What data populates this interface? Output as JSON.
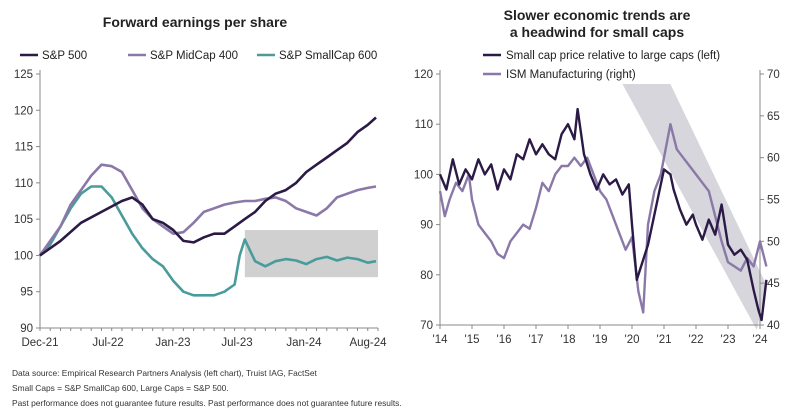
{
  "chart_data": [
    {
      "type": "line",
      "title": "Forward earnings per share",
      "x_start": "Dec-21",
      "x_end": "Aug-24",
      "x_tick_labels": [
        "Dec-21",
        "Jul-22",
        "Jan-23",
        "Jul-23",
        "Jan-24",
        "Aug-24"
      ],
      "y_ticks": [
        90,
        95,
        100,
        105,
        110,
        115,
        120,
        125
      ],
      "ylim": [
        90,
        125
      ],
      "highlight_box": {
        "x_from": "Aug-23",
        "x_to": "Aug-24",
        "y_from": 97,
        "y_to": 103.5
      },
      "series": [
        {
          "name": "S&P 500",
          "color": "#2b1a45",
          "points": [
            [
              0,
              100
            ],
            [
              2,
              102
            ],
            [
              4,
              104.5
            ],
            [
              6,
              106
            ],
            [
              8,
              107.5
            ],
            [
              9,
              108
            ],
            [
              10,
              107
            ],
            [
              11,
              105
            ],
            [
              12,
              104.5
            ],
            [
              13,
              103.5
            ],
            [
              14,
              102
            ],
            [
              15,
              101.8
            ],
            [
              16,
              102.5
            ],
            [
              17,
              103
            ],
            [
              18,
              103
            ],
            [
              19,
              104
            ],
            [
              20,
              105
            ],
            [
              21,
              106
            ],
            [
              22,
              107.5
            ],
            [
              23,
              108.5
            ],
            [
              24,
              109
            ],
            [
              25,
              110
            ],
            [
              26,
              111.5
            ],
            [
              27,
              112.5
            ],
            [
              28,
              113.5
            ],
            [
              29,
              114.5
            ],
            [
              30,
              115.5
            ],
            [
              31,
              117
            ],
            [
              32,
              118
            ],
            [
              32.8,
              119
            ]
          ]
        },
        {
          "name": "S&P MidCap 400",
          "color": "#8a78a8",
          "points": [
            [
              0,
              100
            ],
            [
              1,
              102
            ],
            [
              2,
              104
            ],
            [
              3,
              107
            ],
            [
              4,
              109
            ],
            [
              5,
              111
            ],
            [
              6,
              112.5
            ],
            [
              7,
              112.3
            ],
            [
              8,
              111.5
            ],
            [
              9,
              109
            ],
            [
              10,
              106.5
            ],
            [
              11,
              105
            ],
            [
              12,
              104
            ],
            [
              13,
              103
            ],
            [
              14,
              103.2
            ],
            [
              15,
              104.5
            ],
            [
              16,
              106
            ],
            [
              17,
              106.5
            ],
            [
              18,
              107
            ],
            [
              19,
              107.3
            ],
            [
              20,
              107.5
            ],
            [
              21,
              107.5
            ],
            [
              22,
              107.8
            ],
            [
              23,
              108
            ],
            [
              24,
              107.5
            ],
            [
              25,
              106.5
            ],
            [
              26,
              106
            ],
            [
              27,
              105.5
            ],
            [
              28,
              106.5
            ],
            [
              29,
              108
            ],
            [
              30,
              108.5
            ],
            [
              31,
              109
            ],
            [
              32,
              109.3
            ],
            [
              32.8,
              109.5
            ]
          ]
        },
        {
          "name": "S&P SmallCap 600",
          "color": "#4a9b9b",
          "points": [
            [
              0,
              100
            ],
            [
              1,
              101.5
            ],
            [
              2,
              104
            ],
            [
              3,
              106.5
            ],
            [
              4,
              108.5
            ],
            [
              5,
              109.5
            ],
            [
              6,
              109.5
            ],
            [
              7,
              108
            ],
            [
              8,
              105.5
            ],
            [
              9,
              103
            ],
            [
              10,
              101
            ],
            [
              11,
              99.5
            ],
            [
              12,
              98.5
            ],
            [
              13,
              96.5
            ],
            [
              14,
              95
            ],
            [
              15,
              94.5
            ],
            [
              16,
              94.5
            ],
            [
              17,
              94.5
            ],
            [
              18,
              95
            ],
            [
              19,
              96
            ],
            [
              19.5,
              100
            ],
            [
              20,
              102.2
            ],
            [
              21,
              99.2
            ],
            [
              22,
              98.5
            ],
            [
              23,
              99.2
            ],
            [
              24,
              99.5
            ],
            [
              25,
              99.3
            ],
            [
              26,
              98.8
            ],
            [
              27,
              99.5
            ],
            [
              28,
              99.8
            ],
            [
              29,
              99.3
            ],
            [
              30,
              99.7
            ],
            [
              31,
              99.5
            ],
            [
              32,
              99
            ],
            [
              32.8,
              99.2
            ]
          ]
        }
      ]
    },
    {
      "type": "line",
      "title_lines": [
        "Slower economic trends are",
        "a headwind for small caps"
      ],
      "x_tick_labels": [
        "'14",
        "'15",
        "'16",
        "'17",
        "'18",
        "'19",
        "'20",
        "'21",
        "'22",
        "'23",
        "'24"
      ],
      "y_left_ticks": [
        70,
        80,
        90,
        100,
        110,
        120
      ],
      "y_right_ticks": [
        40,
        45,
        50,
        55,
        60,
        65,
        70
      ],
      "ylim_left": [
        70,
        120
      ],
      "ylim_right": [
        40,
        70
      ],
      "trend_band": "shaded downward channel from late 2019 to 2024",
      "series": [
        {
          "name": "Small cap price relative to large caps (left)",
          "axis": "left",
          "color": "#2b1a45",
          "points": [
            [
              2014.0,
              100
            ],
            [
              2014.2,
              97
            ],
            [
              2014.4,
              103
            ],
            [
              2014.6,
              98
            ],
            [
              2014.8,
              101
            ],
            [
              2015.0,
              99
            ],
            [
              2015.2,
              103
            ],
            [
              2015.4,
              100
            ],
            [
              2015.6,
              102
            ],
            [
              2015.8,
              97
            ],
            [
              2016.0,
              101
            ],
            [
              2016.2,
              99
            ],
            [
              2016.4,
              104
            ],
            [
              2016.6,
              103
            ],
            [
              2016.8,
              107
            ],
            [
              2017.0,
              104
            ],
            [
              2017.2,
              106
            ],
            [
              2017.4,
              104
            ],
            [
              2017.6,
              103
            ],
            [
              2017.8,
              108
            ],
            [
              2018.0,
              110
            ],
            [
              2018.2,
              107
            ],
            [
              2018.3,
              113
            ],
            [
              2018.5,
              104
            ],
            [
              2018.7,
              100
            ],
            [
              2018.9,
              97
            ],
            [
              2019.1,
              100
            ],
            [
              2019.3,
              98
            ],
            [
              2019.5,
              99
            ],
            [
              2019.7,
              96
            ],
            [
              2019.9,
              98
            ],
            [
              2020.0,
              90
            ],
            [
              2020.15,
              79
            ],
            [
              2020.3,
              82
            ],
            [
              2020.5,
              86
            ],
            [
              2020.7,
              92
            ],
            [
              2020.9,
              98
            ],
            [
              2021.0,
              101
            ],
            [
              2021.2,
              100
            ],
            [
              2021.3,
              97
            ],
            [
              2021.5,
              93
            ],
            [
              2021.7,
              90
            ],
            [
              2021.9,
              92
            ],
            [
              2022.0,
              90
            ],
            [
              2022.2,
              87
            ],
            [
              2022.4,
              91
            ],
            [
              2022.6,
              88
            ],
            [
              2022.8,
              94
            ],
            [
              2023.0,
              86
            ],
            [
              2023.2,
              84
            ],
            [
              2023.4,
              85
            ],
            [
              2023.6,
              83
            ],
            [
              2023.8,
              77
            ],
            [
              2023.95,
              73
            ],
            [
              2024.05,
              71
            ],
            [
              2024.2,
              79
            ]
          ]
        },
        {
          "name": "ISM Manufacturing (right)",
          "axis": "right",
          "color": "#8a78a8",
          "points": [
            [
              2014.0,
              56
            ],
            [
              2014.15,
              53
            ],
            [
              2014.3,
              55
            ],
            [
              2014.5,
              57
            ],
            [
              2014.7,
              56
            ],
            [
              2014.9,
              58
            ],
            [
              2015.0,
              55
            ],
            [
              2015.2,
              52
            ],
            [
              2015.4,
              51
            ],
            [
              2015.6,
              50
            ],
            [
              2015.8,
              48.5
            ],
            [
              2016.0,
              48
            ],
            [
              2016.2,
              50
            ],
            [
              2016.4,
              51
            ],
            [
              2016.6,
              52
            ],
            [
              2016.8,
              51.5
            ],
            [
              2017.0,
              54
            ],
            [
              2017.2,
              57
            ],
            [
              2017.4,
              56
            ],
            [
              2017.6,
              58
            ],
            [
              2017.8,
              59
            ],
            [
              2018.0,
              59
            ],
            [
              2018.2,
              60
            ],
            [
              2018.4,
              59
            ],
            [
              2018.6,
              60
            ],
            [
              2018.8,
              58
            ],
            [
              2019.0,
              56
            ],
            [
              2019.2,
              55
            ],
            [
              2019.4,
              53
            ],
            [
              2019.6,
              51
            ],
            [
              2019.8,
              49
            ],
            [
              2020.0,
              50.5
            ],
            [
              2020.2,
              44
            ],
            [
              2020.35,
              41.5
            ],
            [
              2020.5,
              52
            ],
            [
              2020.7,
              56
            ],
            [
              2020.9,
              58
            ],
            [
              2021.0,
              60
            ],
            [
              2021.2,
              64
            ],
            [
              2021.4,
              61
            ],
            [
              2021.6,
              60
            ],
            [
              2021.8,
              59
            ],
            [
              2022.0,
              58
            ],
            [
              2022.2,
              57
            ],
            [
              2022.4,
              56
            ],
            [
              2022.6,
              53
            ],
            [
              2022.8,
              50
            ],
            [
              2023.0,
              47.5
            ],
            [
              2023.2,
              47
            ],
            [
              2023.4,
              46.5
            ],
            [
              2023.6,
              48
            ],
            [
              2023.8,
              47
            ],
            [
              2024.0,
              50
            ],
            [
              2024.2,
              47
            ]
          ]
        }
      ]
    }
  ],
  "legends": {
    "left": [
      "S&P 500",
      "S&P MidCap 400",
      "S&P SmallCap 600"
    ],
    "right": [
      "Small cap price relative to large caps (left)",
      "ISM Manufacturing (right)"
    ]
  },
  "footnotes": {
    "source": "Data source: Empirical Research Partners Analysis (left chart), Truist IAG, FactSet",
    "definitions": "Small Caps = S&P SmallCap 600, Large Caps = S&P 500.",
    "disclaimer": "Past performance does not guarantee future results. Past performance does not guarantee future results."
  }
}
